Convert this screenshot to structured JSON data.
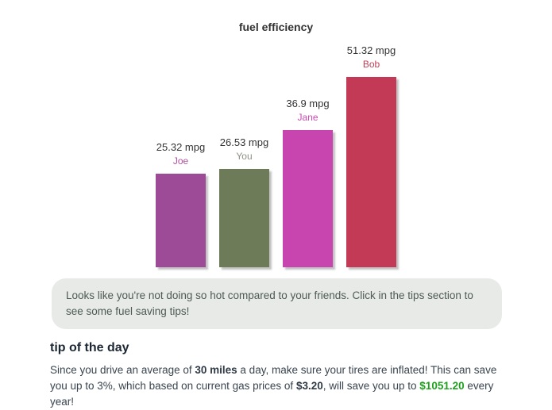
{
  "page": {
    "title": "fuel efficiency"
  },
  "chart_data": {
    "type": "bar",
    "title": "fuel efficiency",
    "categories": [
      "Joe",
      "You",
      "Jane",
      "Bob"
    ],
    "values": [
      25.32,
      26.53,
      36.9,
      51.32
    ],
    "value_labels": [
      "25.32 mpg",
      "26.53 mpg",
      "36.9 mpg",
      "51.32 mpg"
    ],
    "unit": "mpg",
    "xlabel": "",
    "ylabel": "",
    "ylim": [
      0,
      55
    ],
    "axes_hidden": true,
    "grid": false,
    "legend": "none",
    "bar_colors": [
      "#9d4b97",
      "#6d7b58",
      "#c844ae",
      "#c23a56"
    ],
    "label_colors": [
      "#b0519f",
      "#8d9185",
      "#cb4ab2",
      "#c04058"
    ]
  },
  "message_box": {
    "text": "Looks like you're not doing so hot compared to your friends. Click in the tips section to see some fuel saving tips!"
  },
  "tip_section": {
    "heading": "tip of the day",
    "text_parts": {
      "part1": "Since you drive an average of ",
      "bold1": "30 miles",
      "part2": " a day, make sure your tires are inflated! This can save you up to 3%, which based on current gas prices of ",
      "bold2": "$3.20",
      "part3": ", will save you up to ",
      "green": "$1051.20",
      "part4": " every year!"
    },
    "highlight_color": "#1fa01f"
  }
}
